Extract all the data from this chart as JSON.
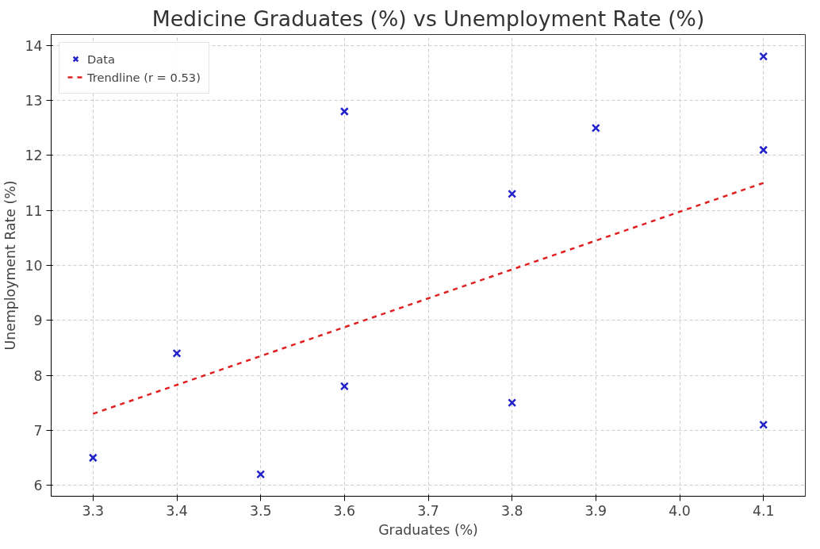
{
  "chart_data": {
    "type": "scatter",
    "title": "Medicine Graduates (%) vs Unemployment Rate (%)",
    "xlabel": "Graduates (%)",
    "ylabel": "Unemployment Rate (%)",
    "xlim": [
      3.25,
      4.15
    ],
    "xticks": [
      {
        "value": 3.3,
        "label": "3.3"
      },
      {
        "value": 3.4,
        "label": "3.4"
      },
      {
        "value": 3.5,
        "label": "3.5"
      },
      {
        "value": 3.6,
        "label": "3.6"
      },
      {
        "value": 3.7,
        "label": "3.7"
      },
      {
        "value": 3.8,
        "label": "3.8"
      },
      {
        "value": 3.9,
        "label": "3.9"
      },
      {
        "value": 4.0,
        "label": "4.0"
      },
      {
        "value": 4.1,
        "label": "4.1"
      }
    ],
    "ylim": [
      5.8,
      14.2
    ],
    "yticks": [
      6,
      7,
      8,
      9,
      10,
      11,
      12,
      13,
      14
    ],
    "grid": true,
    "legend": "top left",
    "series": [
      {
        "name": "Data",
        "marker": "cross",
        "color": "#2222cc",
        "x": [
          3.3,
          3.4,
          3.5,
          3.6,
          3.6,
          3.8,
          3.8,
          3.9,
          4.1,
          4.1,
          4.1
        ],
        "values": [
          6.5,
          8.4,
          6.2,
          12.8,
          7.8,
          11.3,
          7.5,
          12.5,
          13.8,
          12.1,
          7.1
        ]
      },
      {
        "name": "Trendline (r = 0.53)",
        "type": "line",
        "line_style": "dashed",
        "color": "#e02020",
        "x": [
          3.3,
          4.1
        ],
        "values": [
          7.3,
          11.5
        ]
      }
    ]
  }
}
